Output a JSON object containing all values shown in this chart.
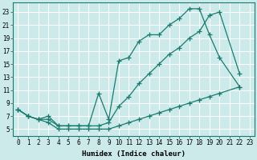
{
  "bg_color": "#cceaea",
  "grid_color": "#ffffff",
  "line_color": "#1a7a6e",
  "line_width": 0.9,
  "marker": "+",
  "markersize": 4,
  "markerwidth": 0.9,
  "xlabel": "Humidex (Indice chaleur)",
  "xlabel_fontsize": 6.5,
  "tick_fontsize": 5.5,
  "xlim": [
    -0.5,
    23.5
  ],
  "ylim": [
    4,
    24.5
  ],
  "xticks": [
    0,
    1,
    2,
    3,
    4,
    5,
    6,
    7,
    8,
    9,
    10,
    11,
    12,
    13,
    14,
    15,
    16,
    17,
    18,
    19,
    20,
    21,
    22,
    23
  ],
  "yticks": [
    5,
    7,
    9,
    11,
    13,
    15,
    17,
    19,
    21,
    23
  ],
  "line1_x": [
    0,
    1,
    2,
    3,
    4,
    5,
    6,
    7,
    8,
    9,
    10,
    11,
    12,
    13,
    14,
    15,
    16,
    17,
    18,
    19,
    20,
    22
  ],
  "line1_y": [
    8,
    7,
    6.5,
    6.5,
    5.5,
    5.5,
    5.5,
    5.5,
    10.5,
    6.5,
    15.5,
    16,
    18.5,
    19.5,
    19.5,
    21,
    22,
    23.5,
    23.5,
    19.5,
    16,
    11.5
  ],
  "line2_x": [
    0,
    1,
    2,
    3,
    4,
    5,
    6,
    7,
    8,
    9,
    10,
    11,
    12,
    13,
    14,
    15,
    16,
    17,
    18,
    19,
    20,
    22
  ],
  "line2_y": [
    8,
    7,
    6.5,
    7,
    5.5,
    5.5,
    5.5,
    5.5,
    5.5,
    6,
    8.5,
    10,
    12,
    13.5,
    15,
    16.5,
    17.5,
    19,
    20,
    22.5,
    23,
    13.5
  ],
  "line3_x": [
    0,
    1,
    2,
    3,
    4,
    5,
    6,
    7,
    8,
    9,
    10,
    11,
    12,
    13,
    14,
    15,
    16,
    17,
    18,
    19,
    20,
    22
  ],
  "line3_y": [
    8,
    7,
    6.5,
    6,
    5,
    5,
    5,
    5,
    5,
    5,
    5.5,
    6,
    6.5,
    7,
    7.5,
    8,
    8.5,
    9,
    9.5,
    10,
    10.5,
    11.5
  ]
}
